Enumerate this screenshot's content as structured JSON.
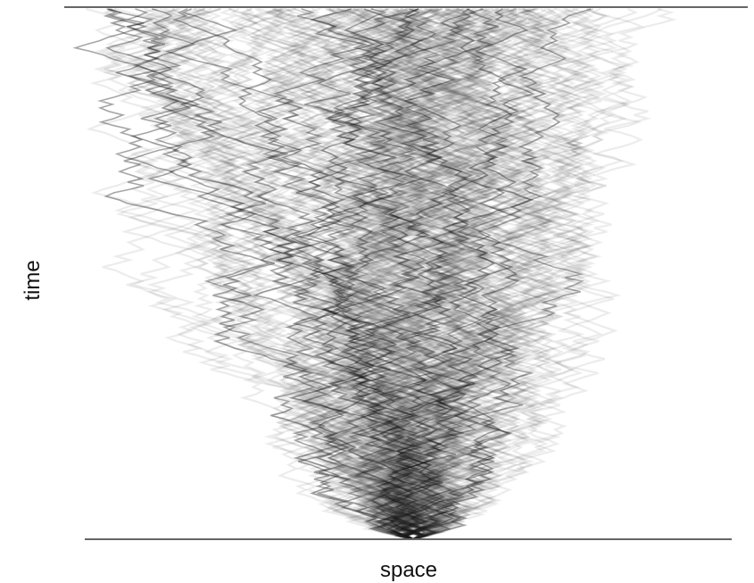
{
  "labels": {
    "x": "space",
    "y": "time"
  }
}
